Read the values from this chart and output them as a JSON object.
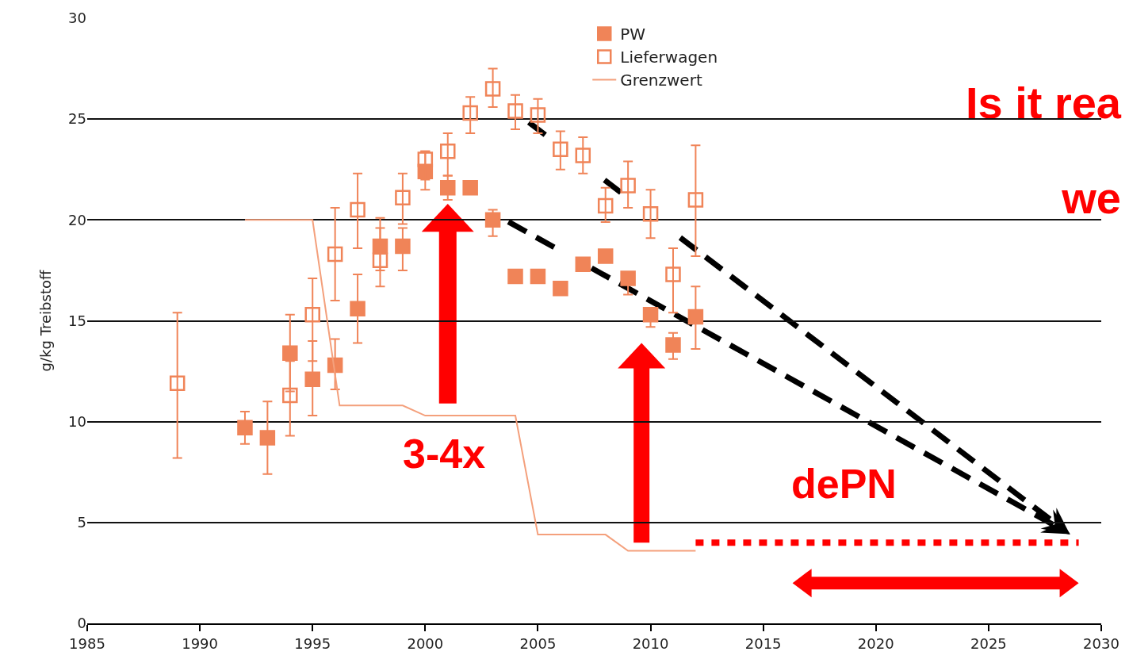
{
  "chart_data": {
    "type": "scatter",
    "title": "Is it rea",
    "subtitle": "we",
    "ylabel": "g/kg Treibstoff",
    "xlim": [
      1985,
      2030
    ],
    "xticks": [
      1985,
      1990,
      1995,
      2000,
      2005,
      2010,
      2015,
      2020,
      2025,
      2030
    ],
    "ylim": [
      0,
      30
    ],
    "yticks": [
      0,
      5,
      10,
      15,
      20,
      25,
      30
    ],
    "grid": "y",
    "legend": "top",
    "series": [
      {
        "name": "PW",
        "marker": "square",
        "color": "#f08458",
        "x": [
          1992,
          1993,
          1994,
          1995,
          1996,
          1997,
          1998,
          1999,
          2000,
          2001,
          2002,
          2003,
          2004,
          2005,
          2006,
          2007,
          2008,
          2009,
          2010,
          2011,
          2012
        ],
        "values": [
          9.7,
          9.2,
          13.4,
          12.1,
          12.8,
          15.6,
          18.7,
          18.7,
          22.4,
          21.6,
          21.6,
          20.0,
          17.2,
          17.2,
          16.6,
          17.8,
          18.2,
          17.1,
          15.3,
          13.8,
          15.2
        ],
        "errors": [
          [
            8.9,
            10.5
          ],
          [
            7.4,
            11.0
          ],
          [
            11.5,
            15.3
          ],
          [
            10.3,
            14.0
          ],
          [
            11.6,
            14.1
          ],
          [
            13.9,
            17.3
          ],
          [
            17.5,
            20.1
          ],
          [
            17.5,
            19.6
          ],
          [
            21.5,
            23.4
          ],
          [
            21.0,
            22.2
          ],
          null,
          [
            19.2,
            20.5
          ],
          null,
          null,
          null,
          null,
          null,
          [
            16.3,
            17.4
          ],
          [
            14.7,
            15.6
          ],
          [
            13.1,
            14.4
          ],
          [
            13.6,
            16.7
          ]
        ]
      },
      {
        "name": "Lieferwagen",
        "marker": "square-open",
        "color": "#f08458",
        "x": [
          1989,
          1994,
          1995,
          1996,
          1997,
          1998,
          1999,
          2000,
          2001,
          2002,
          2003,
          2004,
          2005,
          2006,
          2007,
          2008,
          2009,
          2010,
          2011,
          2012
        ],
        "values": [
          11.9,
          11.3,
          15.3,
          18.3,
          20.5,
          18.0,
          21.1,
          23.0,
          23.4,
          25.3,
          26.5,
          25.4,
          25.2,
          23.5,
          23.2,
          20.7,
          21.7,
          20.3,
          17.3,
          21.0
        ],
        "errors": [
          [
            8.2,
            15.4
          ],
          [
            9.3,
            13.0
          ],
          [
            13.0,
            17.1
          ],
          [
            16.0,
            20.6
          ],
          [
            18.6,
            22.3
          ],
          [
            16.7,
            19.6
          ],
          [
            19.8,
            22.3
          ],
          [
            22.0,
            23.4
          ],
          [
            22.2,
            24.3
          ],
          [
            24.3,
            26.1
          ],
          [
            25.6,
            27.5
          ],
          [
            24.5,
            26.2
          ],
          [
            24.3,
            26.0
          ],
          [
            22.5,
            24.4
          ],
          [
            22.3,
            24.1
          ],
          [
            19.9,
            21.6
          ],
          [
            20.6,
            22.9
          ],
          [
            19.1,
            21.5
          ],
          [
            15.4,
            18.6
          ],
          [
            18.2,
            23.7
          ]
        ]
      },
      {
        "name": "Grenzwert",
        "type": "line",
        "line_style": "solid",
        "color": "#f4a07c",
        "x": [
          1992,
          1995,
          1996.2,
          1999,
          2000,
          2004,
          2005,
          2008,
          2009,
          2012
        ],
        "values": [
          20,
          20,
          10.8,
          10.8,
          10.3,
          10.3,
          4.4,
          4.4,
          3.6,
          3.6
        ]
      },
      {
        "type": "line",
        "line_style": "dotted",
        "color": "#ff0000",
        "x": [
          2012,
          2029
        ],
        "values": [
          4.0,
          4.0
        ]
      }
    ],
    "annotations": [
      "3-4x",
      "dePN"
    ]
  }
}
